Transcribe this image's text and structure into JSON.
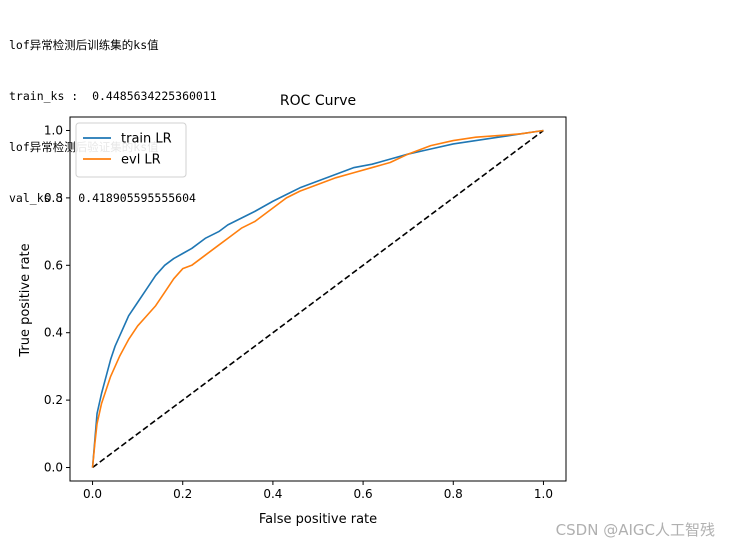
{
  "console": {
    "lines": [
      "lof异常检测后训练集的ks值",
      "train_ks :  0.4485634225360011",
      "lof异常检测后验证集的ks值",
      "val_ks :  0.418905595555604"
    ]
  },
  "watermark": "CSDN @AIGC人工智残",
  "chart_data": {
    "type": "line",
    "title": "ROC Curve",
    "xlabel": "False positive rate",
    "ylabel": "True positive rate",
    "xlim": [
      -0.05,
      1.05
    ],
    "ylim": [
      -0.04,
      1.04
    ],
    "xticks": [
      0.0,
      0.2,
      0.4,
      0.6,
      0.8,
      1.0
    ],
    "yticks": [
      0.0,
      0.2,
      0.4,
      0.6,
      0.8,
      1.0
    ],
    "xtick_labels": [
      "0.0",
      "0.2",
      "0.4",
      "0.6",
      "0.8",
      "1.0"
    ],
    "ytick_labels": [
      "0.0",
      "0.2",
      "0.4",
      "0.6",
      "0.8",
      "1.0"
    ],
    "grid": false,
    "legend_position": "upper-left",
    "series": [
      {
        "name": "train LR",
        "color": "#1f77b4",
        "x": [
          0.0,
          0.005,
          0.01,
          0.02,
          0.03,
          0.04,
          0.05,
          0.06,
          0.08,
          0.1,
          0.12,
          0.14,
          0.16,
          0.18,
          0.2,
          0.22,
          0.25,
          0.28,
          0.3,
          0.33,
          0.36,
          0.4,
          0.43,
          0.46,
          0.5,
          0.54,
          0.58,
          0.62,
          0.66,
          0.7,
          0.75,
          0.8,
          0.85,
          0.9,
          0.95,
          1.0
        ],
        "y": [
          0.0,
          0.08,
          0.16,
          0.22,
          0.27,
          0.32,
          0.36,
          0.39,
          0.45,
          0.49,
          0.53,
          0.57,
          0.6,
          0.62,
          0.635,
          0.65,
          0.68,
          0.7,
          0.72,
          0.74,
          0.76,
          0.79,
          0.81,
          0.83,
          0.85,
          0.87,
          0.89,
          0.9,
          0.915,
          0.93,
          0.945,
          0.96,
          0.97,
          0.98,
          0.99,
          1.0
        ]
      },
      {
        "name": "evl LR",
        "color": "#ff7f0e",
        "x": [
          0.0,
          0.005,
          0.01,
          0.02,
          0.03,
          0.04,
          0.05,
          0.06,
          0.08,
          0.1,
          0.12,
          0.14,
          0.16,
          0.18,
          0.2,
          0.22,
          0.25,
          0.28,
          0.3,
          0.33,
          0.36,
          0.4,
          0.43,
          0.46,
          0.5,
          0.54,
          0.58,
          0.62,
          0.66,
          0.7,
          0.75,
          0.8,
          0.85,
          0.9,
          0.95,
          1.0
        ],
        "y": [
          0.0,
          0.07,
          0.13,
          0.19,
          0.23,
          0.27,
          0.3,
          0.33,
          0.38,
          0.42,
          0.45,
          0.48,
          0.52,
          0.56,
          0.59,
          0.6,
          0.63,
          0.66,
          0.68,
          0.71,
          0.73,
          0.77,
          0.8,
          0.82,
          0.84,
          0.86,
          0.875,
          0.89,
          0.905,
          0.93,
          0.955,
          0.97,
          0.98,
          0.985,
          0.99,
          1.0
        ]
      },
      {
        "name": "",
        "color": "#000000",
        "dashed": true,
        "x": [
          0.0,
          1.0
        ],
        "y": [
          0.0,
          1.0
        ]
      }
    ]
  }
}
